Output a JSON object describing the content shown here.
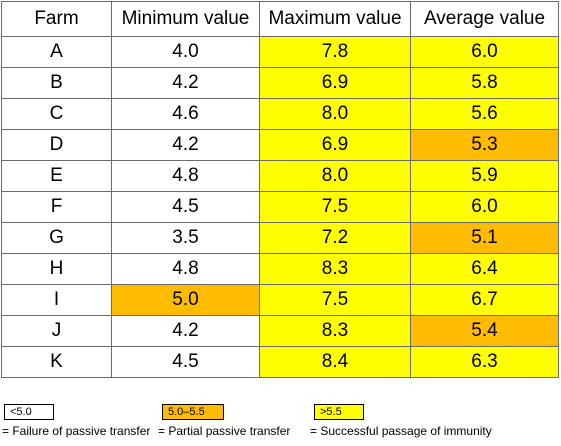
{
  "table": {
    "headers": [
      "Farm",
      "Minimum value",
      "Maximum value",
      "Average value"
    ],
    "rows": [
      {
        "farm": "A",
        "min": "4.0",
        "max": "7.8",
        "avg": "6.0"
      },
      {
        "farm": "B",
        "min": "4.2",
        "max": "6.9",
        "avg": "5.8"
      },
      {
        "farm": "C",
        "min": "4.6",
        "max": "8.0",
        "avg": "5.6"
      },
      {
        "farm": "D",
        "min": "4.2",
        "max": "6.9",
        "avg": "5.3"
      },
      {
        "farm": "E",
        "min": "4.8",
        "max": "8.0",
        "avg": "5.9"
      },
      {
        "farm": "F",
        "min": "4.5",
        "max": "7.5",
        "avg": "6.0"
      },
      {
        "farm": "G",
        "min": "3.5",
        "max": "7.2",
        "avg": "5.1"
      },
      {
        "farm": "H",
        "min": "4.8",
        "max": "8.3",
        "avg": "6.4"
      },
      {
        "farm": "I",
        "min": "5.0",
        "max": "7.5",
        "avg": "6.7"
      },
      {
        "farm": "J",
        "min": "4.2",
        "max": "8.3",
        "avg": "5.4"
      },
      {
        "farm": "K",
        "min": "4.5",
        "max": "8.4",
        "avg": "6.3"
      }
    ]
  },
  "legend": [
    {
      "swatch_label": "<5.0",
      "description": "= Failure of passive transfer",
      "color": "#ffffff"
    },
    {
      "swatch_label": "5.0–5.5",
      "description": "= Partial passive transfer",
      "color": "#ffbb00"
    },
    {
      "swatch_label": ">5.5",
      "description": "= Successful passage of immunity",
      "color": "#ffff00"
    }
  ],
  "colors": {
    "failure": "#ffffff",
    "partial": "#ffbb00",
    "success": "#ffff00",
    "border": "#6b6b6b"
  },
  "chart_data": {
    "type": "table",
    "columns": [
      "Farm",
      "Minimum value",
      "Maximum value",
      "Average value"
    ],
    "rows": [
      [
        "A",
        4.0,
        7.8,
        6.0
      ],
      [
        "B",
        4.2,
        6.9,
        5.8
      ],
      [
        "C",
        4.6,
        8.0,
        5.6
      ],
      [
        "D",
        4.2,
        6.9,
        5.3
      ],
      [
        "E",
        4.8,
        8.0,
        5.9
      ],
      [
        "F",
        4.5,
        7.5,
        6.0
      ],
      [
        "G",
        3.5,
        7.2,
        5.1
      ],
      [
        "H",
        4.8,
        8.3,
        6.4
      ],
      [
        "I",
        5.0,
        7.5,
        6.7
      ],
      [
        "J",
        4.2,
        8.3,
        5.4
      ],
      [
        "K",
        4.5,
        8.4,
        6.3
      ]
    ],
    "thresholds": {
      "failure_below": 5.0,
      "partial_range": [
        5.0,
        5.5
      ],
      "success_above": 5.5
    }
  }
}
